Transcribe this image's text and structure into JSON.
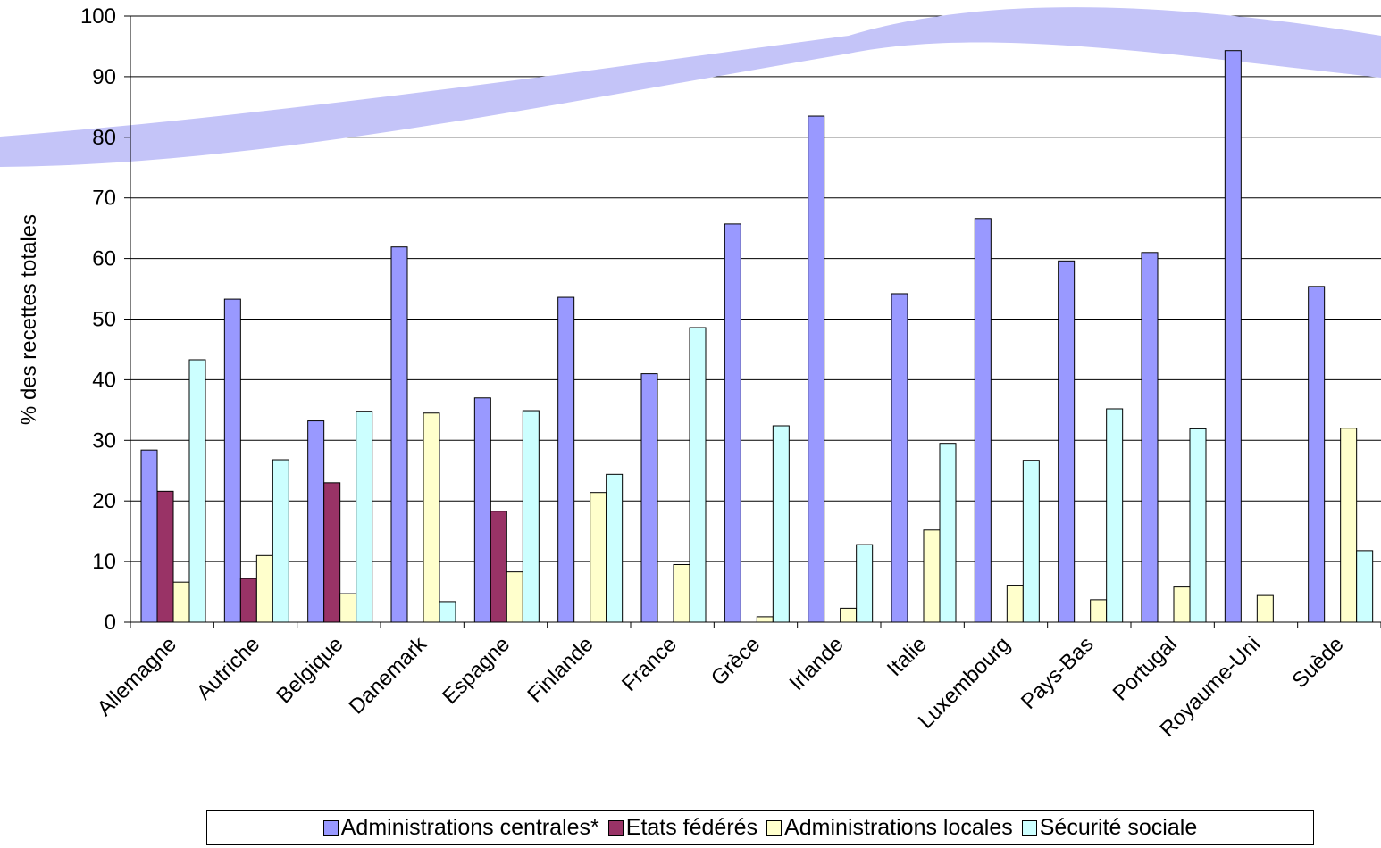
{
  "chart_data": {
    "type": "bar",
    "title": "",
    "xlabel": "",
    "ylabel": "% des recettes totales",
    "ylim": [
      0,
      100
    ],
    "yticks": [
      0,
      10,
      20,
      30,
      40,
      50,
      60,
      70,
      80,
      90,
      100
    ],
    "grid": true,
    "legend_position": "bottom",
    "categories": [
      "Allemagne",
      "Autriche",
      "Belgique",
      "Danemark",
      "Espagne",
      "Finlande",
      "France",
      "Grèce",
      "Irlande",
      "Italie",
      "Luxembourg",
      "Pays-Bas",
      "Portugal",
      "Royaume-Uni",
      "Suède"
    ],
    "series": [
      {
        "name": "Administrations centrales*",
        "color": "#9999FF",
        "values": [
          28.4,
          53.3,
          33.2,
          61.9,
          37.0,
          53.6,
          41.0,
          65.7,
          83.5,
          54.2,
          66.6,
          59.6,
          61.0,
          94.3,
          55.4
        ]
      },
      {
        "name": "Etats fédérés",
        "color": "#993366",
        "values": [
          21.6,
          7.2,
          23.0,
          0,
          18.3,
          0,
          0,
          0,
          0,
          0,
          0,
          0,
          0,
          0,
          0
        ]
      },
      {
        "name": "Administrations locales",
        "color": "#FFFFCC",
        "values": [
          6.6,
          11.0,
          4.7,
          34.5,
          8.3,
          21.4,
          9.5,
          0.9,
          2.3,
          15.2,
          6.1,
          3.7,
          5.8,
          4.4,
          32.0
        ]
      },
      {
        "name": "Sécurité sociale",
        "color": "#CCFFFF",
        "values": [
          43.3,
          26.8,
          34.8,
          3.4,
          34.9,
          24.4,
          48.6,
          32.4,
          12.8,
          29.5,
          26.7,
          35.2,
          31.9,
          0,
          11.8
        ]
      }
    ]
  }
}
